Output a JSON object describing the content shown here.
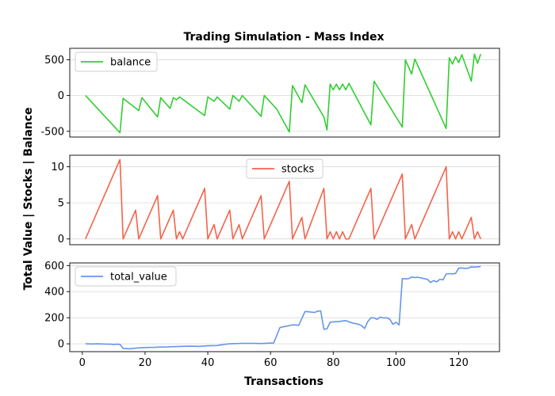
{
  "figure": {
    "title": "Trading Simulation - Mass Index",
    "xlabel": "Transactions",
    "ylabel": "Total Value | Stocks | Balance"
  },
  "chart_data": [
    {
      "type": "line",
      "legend_position": "upper-left",
      "grid": "horizontal",
      "xlim": [
        -4,
        133
      ],
      "ylim": [
        -580,
        660
      ],
      "yticks": [
        -500,
        0,
        500
      ],
      "series": [
        {
          "name": "balance",
          "color": "#32cd32",
          "x": [
            1,
            12,
            13,
            18,
            19,
            24,
            25,
            28,
            29,
            30,
            31,
            39,
            40,
            42,
            43,
            47,
            48,
            50,
            51,
            57,
            58,
            62,
            66,
            67,
            70,
            71,
            77,
            78,
            79,
            80,
            81,
            82,
            83,
            84,
            85,
            92,
            93,
            102,
            103,
            105,
            106,
            116,
            117,
            118,
            119,
            120,
            121,
            124,
            125,
            126,
            127
          ],
          "y": [
            0,
            -520,
            -40,
            -210,
            -30,
            -300,
            -30,
            -180,
            -30,
            -60,
            -20,
            -280,
            -20,
            -80,
            -20,
            -190,
            0,
            -80,
            0,
            -290,
            0,
            -190,
            -510,
            140,
            -100,
            150,
            -300,
            -480,
            160,
            80,
            160,
            80,
            160,
            80,
            170,
            -410,
            200,
            -440,
            500,
            300,
            510,
            -460,
            530,
            440,
            540,
            460,
            570,
            200,
            580,
            450,
            580
          ]
        }
      ]
    },
    {
      "type": "line",
      "legend_position": "upper-center",
      "grid": "horizontal",
      "xlim": [
        -4,
        133
      ],
      "ylim": [
        -0.8,
        11.6
      ],
      "yticks": [
        0,
        5,
        10
      ],
      "series": [
        {
          "name": "stocks",
          "color": "#f4634a",
          "x": [
            1,
            12,
            13,
            17,
            18,
            24,
            25,
            29,
            30,
            31,
            32,
            39,
            40,
            42,
            43,
            47,
            48,
            50,
            51,
            57,
            58,
            66,
            67,
            70,
            71,
            77,
            78,
            79,
            80,
            81,
            82,
            83,
            84,
            85,
            92,
            93,
            102,
            103,
            105,
            106,
            116,
            117,
            118,
            119,
            120,
            121,
            124,
            125,
            126,
            127
          ],
          "y": [
            0,
            11,
            0,
            4,
            0,
            6,
            0,
            4,
            0,
            1,
            0,
            7,
            0,
            2,
            0,
            4,
            0,
            2,
            0,
            6,
            0,
            8,
            0,
            3,
            0,
            7,
            0,
            1,
            0,
            1,
            0,
            1,
            0,
            0,
            7,
            0,
            9,
            0,
            2,
            0,
            10,
            0,
            1,
            0,
            1,
            0,
            3,
            0,
            1,
            0
          ]
        }
      ]
    },
    {
      "type": "line",
      "legend_position": "upper-left",
      "grid": "horizontal",
      "xlim": [
        -4,
        133
      ],
      "ylim": [
        -60,
        620
      ],
      "yticks": [
        0,
        200,
        400,
        600
      ],
      "series": [
        {
          "name": "total_value",
          "color": "#6495ed",
          "x": [
            1,
            3,
            5,
            7,
            9,
            10,
            11,
            12,
            13,
            15,
            17,
            19,
            21,
            23,
            25,
            27,
            29,
            31,
            33,
            35,
            37,
            39,
            41,
            43,
            45,
            47,
            49,
            51,
            53,
            55,
            57,
            59,
            61,
            63,
            64,
            66,
            67,
            69,
            71,
            72,
            74,
            75,
            76,
            77,
            78,
            79,
            80,
            82,
            84,
            86,
            88,
            89,
            90,
            91,
            92,
            93,
            94,
            95,
            96,
            97,
            98,
            99,
            100,
            101,
            102,
            103,
            104,
            105,
            106,
            107,
            108,
            109,
            110,
            111,
            112,
            113,
            114,
            115,
            116,
            117,
            118,
            119,
            120,
            121,
            122,
            123,
            124,
            125,
            126,
            127
          ],
          "y": [
            0,
            -1,
            0,
            -2,
            -3,
            -5,
            -3,
            -4,
            -35,
            -38,
            -33,
            -30,
            -28,
            -27,
            -25,
            -24,
            -22,
            -20,
            -19,
            -18,
            -20,
            -16,
            -14,
            -13,
            -5,
            0,
            2,
            4,
            4,
            4,
            2,
            5,
            6,
            125,
            130,
            140,
            145,
            142,
            248,
            246,
            240,
            250,
            252,
            112,
            115,
            165,
            168,
            172,
            178,
            160,
            150,
            140,
            118,
            170,
            200,
            198,
            188,
            205,
            198,
            200,
            190,
            150,
            165,
            145,
            500,
            498,
            500,
            512,
            508,
            510,
            505,
            500,
            495,
            470,
            485,
            475,
            495,
            490,
            535,
            538,
            536,
            540,
            580,
            582,
            578,
            580,
            590,
            588,
            590,
            592
          ]
        }
      ]
    }
  ],
  "x_axis": {
    "ticks": [
      0,
      20,
      40,
      60,
      80,
      100,
      120
    ]
  }
}
